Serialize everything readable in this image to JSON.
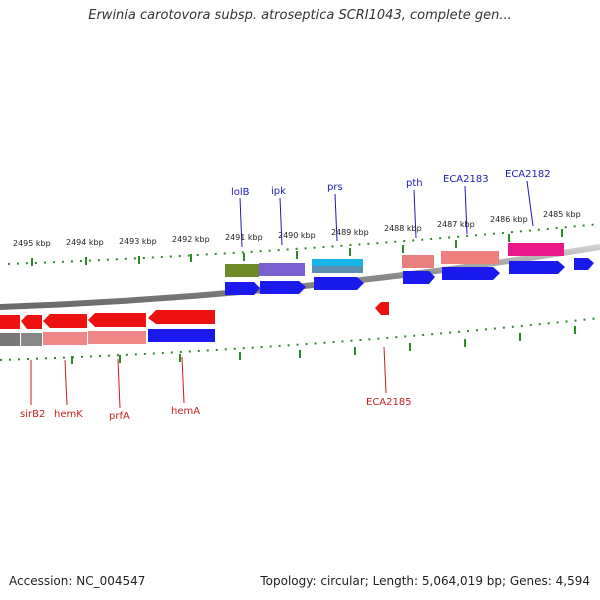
{
  "title": "Erwinia carotovora subsp. atroseptica SCRI1043, complete gen...",
  "footer": {
    "accession": "Accession: NC_004547",
    "summary": "Topology: circular; Length: 5,064,019 bp; Genes: 4,594"
  },
  "colors": {
    "cds_blue": "#1a1aee",
    "gene_red": "#ee1111",
    "tick_green": "#2a8a2a",
    "label_blue": "#1c1cb4",
    "label_red": "#c81e1e"
  },
  "scale_labels": [
    "2495 kbp",
    "2494 kbp",
    "2493 kbp",
    "2492 kbp",
    "2491 kbp",
    "2490 kbp",
    "2489 kbp",
    "2488 kbp",
    "2487 kbp",
    "2486 kbp",
    "2485 kbp"
  ],
  "top_gene_labels": [
    "lolB",
    "ipk",
    "prs",
    "pth",
    "ECA2183",
    "ECA2182"
  ],
  "bottom_gene_labels": [
    "sirB2",
    "hemK",
    "prfA",
    "hemA",
    "ECA2185"
  ]
}
